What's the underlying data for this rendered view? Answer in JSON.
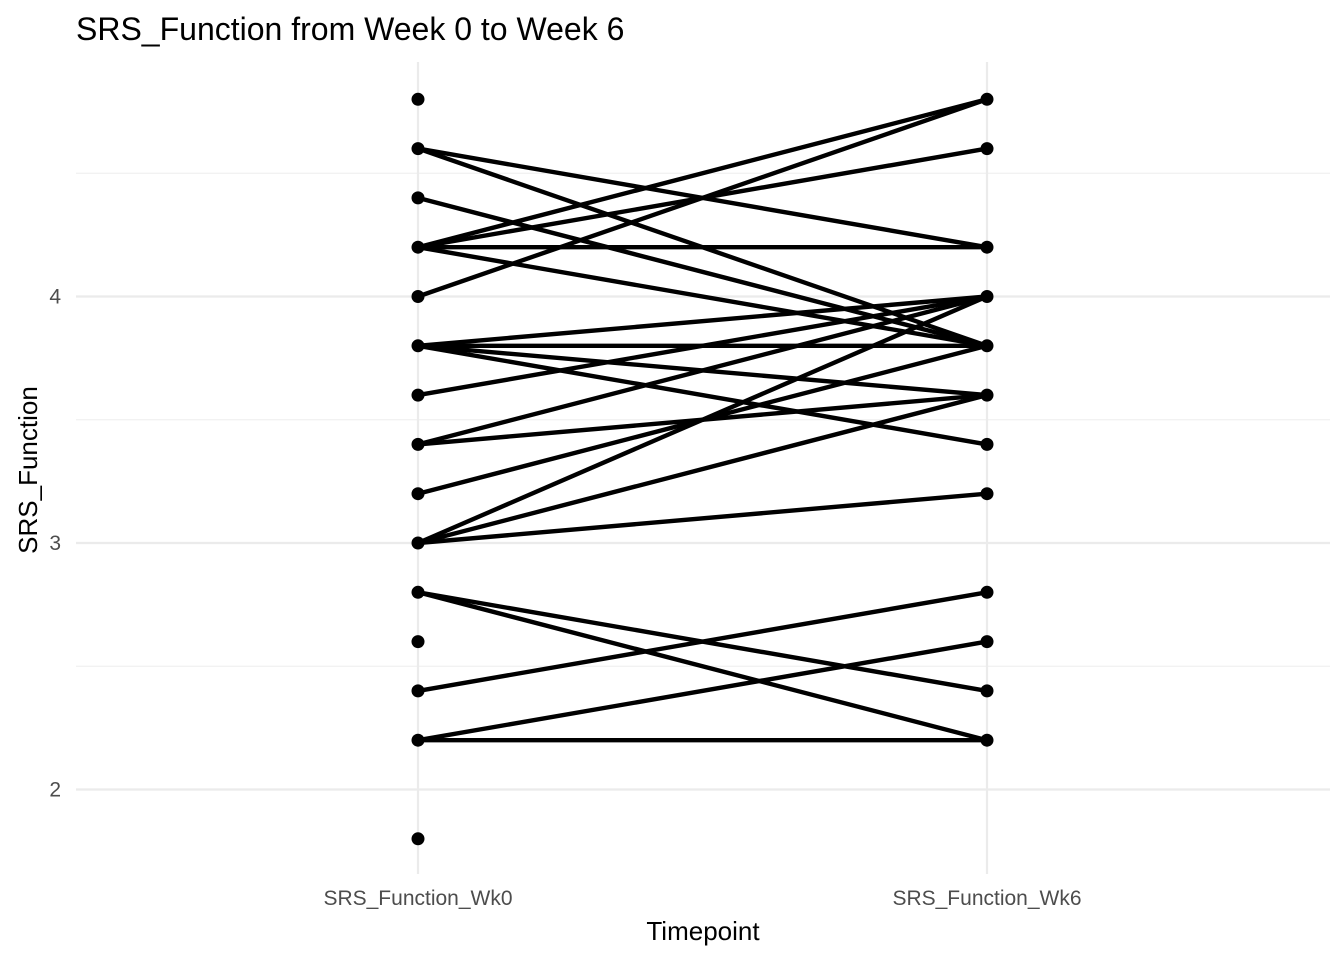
{
  "chart_data": {
    "type": "line",
    "title": "SRS_Function from Week 0 to Week 6",
    "xlabel": "Timepoint",
    "ylabel": "SRS_Function",
    "categories": [
      "SRS_Function_Wk0",
      "SRS_Function_Wk6"
    ],
    "y_ticks": [
      "2",
      "3",
      "4"
    ],
    "ylim": [
      1.7,
      4.9
    ],
    "grid": true,
    "legend": "none",
    "series": [
      {
        "values": [
          4.6,
          4.2
        ]
      },
      {
        "values": [
          4.6,
          3.8
        ]
      },
      {
        "values": [
          4.4,
          3.8
        ]
      },
      {
        "values": [
          4.2,
          4.8
        ]
      },
      {
        "values": [
          4.2,
          4.6
        ]
      },
      {
        "values": [
          4.2,
          4.2
        ]
      },
      {
        "values": [
          4.2,
          3.8
        ]
      },
      {
        "values": [
          4.0,
          4.8
        ]
      },
      {
        "values": [
          3.8,
          4.0
        ]
      },
      {
        "values": [
          3.8,
          3.8
        ]
      },
      {
        "values": [
          3.8,
          3.6
        ]
      },
      {
        "values": [
          3.8,
          3.4
        ]
      },
      {
        "values": [
          3.6,
          4.0
        ]
      },
      {
        "values": [
          3.4,
          4.0
        ]
      },
      {
        "values": [
          3.4,
          3.6
        ]
      },
      {
        "values": [
          3.2,
          3.8
        ]
      },
      {
        "values": [
          3.0,
          4.0
        ]
      },
      {
        "values": [
          3.0,
          3.6
        ]
      },
      {
        "values": [
          3.0,
          3.2
        ]
      },
      {
        "values": [
          2.8,
          2.4
        ]
      },
      {
        "values": [
          2.8,
          2.2
        ]
      },
      {
        "values": [
          2.4,
          2.8
        ]
      },
      {
        "values": [
          2.2,
          2.6
        ]
      },
      {
        "values": [
          2.2,
          2.2
        ]
      }
    ],
    "unpaired_points": [
      {
        "category": "SRS_Function_Wk0",
        "value": 4.8
      },
      {
        "category": "SRS_Function_Wk0",
        "value": 2.6
      },
      {
        "category": "SRS_Function_Wk0",
        "value": 1.8
      }
    ]
  }
}
